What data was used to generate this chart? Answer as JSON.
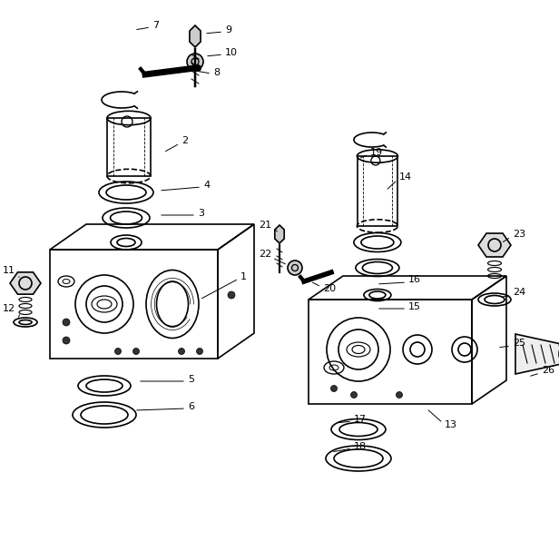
{
  "background_color": "#ffffff",
  "line_color": "#000000",
  "figure_width": 6.16,
  "figure_height": 6.07,
  "dpi": 100
}
